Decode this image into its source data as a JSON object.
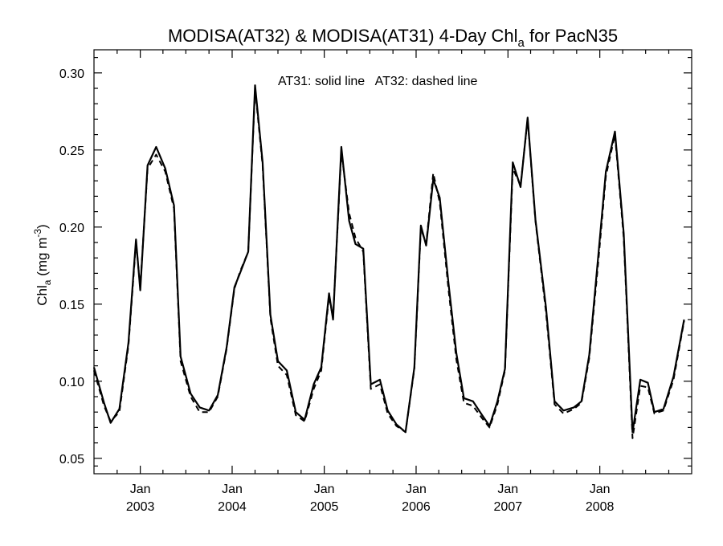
{
  "chart_data": {
    "type": "line",
    "title": {
      "main": "MODISA(AT32) & MODISA(AT31) 4-Day Chl",
      "sub": "a",
      "suffix": " for PacN35"
    },
    "ylabel": {
      "main": "Chl",
      "sub": "a",
      "unit": " (mg m",
      "sup": "-3",
      "close": ")"
    },
    "annotation": "AT31: solid line   AT32: dashed line",
    "xlim": [
      "2002-07-01",
      "2008-12-31"
    ],
    "ylim": [
      0.04,
      0.315
    ],
    "yticks": [
      0.05,
      0.1,
      0.15,
      0.2,
      0.25,
      0.3
    ],
    "ytick_labels": [
      "0.05",
      "0.10",
      "0.15",
      "0.20",
      "0.25",
      "0.30"
    ],
    "xticks_major": [
      {
        "date": "2003-01-01",
        "month": "Jan",
        "year": "2003"
      },
      {
        "date": "2004-01-01",
        "month": "Jan",
        "year": "2004"
      },
      {
        "date": "2005-01-01",
        "month": "Jan",
        "year": "2005"
      },
      {
        "date": "2006-01-01",
        "month": "Jan",
        "year": "2006"
      },
      {
        "date": "2007-01-01",
        "month": "Jan",
        "year": "2007"
      },
      {
        "date": "2008-01-01",
        "month": "Jan",
        "year": "2008"
      }
    ],
    "grid": false,
    "series": [
      {
        "name": "AT31",
        "style": "solid",
        "color": "#000000",
        "points": [
          [
            "2002-07-01",
            0.109
          ],
          [
            "2002-08-10",
            0.086
          ],
          [
            "2002-09-05",
            0.073
          ],
          [
            "2002-10-10",
            0.082
          ],
          [
            "2002-11-15",
            0.125
          ],
          [
            "2002-12-15",
            0.192
          ],
          [
            "2003-01-01",
            0.159
          ],
          [
            "2003-01-30",
            0.24
          ],
          [
            "2003-03-05",
            0.252
          ],
          [
            "2003-04-10",
            0.238
          ],
          [
            "2003-05-15",
            0.214
          ],
          [
            "2003-06-10",
            0.116
          ],
          [
            "2003-07-20",
            0.092
          ],
          [
            "2003-08-25",
            0.083
          ],
          [
            "2003-10-01",
            0.081
          ],
          [
            "2003-11-05",
            0.091
          ],
          [
            "2003-12-10",
            0.122
          ],
          [
            "2004-01-10",
            0.161
          ],
          [
            "2004-02-01",
            0.17
          ],
          [
            "2004-03-05",
            0.184
          ],
          [
            "2004-04-01",
            0.292
          ],
          [
            "2004-05-01",
            0.242
          ],
          [
            "2004-06-01",
            0.143
          ],
          [
            "2004-07-01",
            0.113
          ],
          [
            "2004-08-05",
            0.107
          ],
          [
            "2004-09-10",
            0.08
          ],
          [
            "2004-10-15",
            0.075
          ],
          [
            "2004-11-20",
            0.098
          ],
          [
            "2004-12-20",
            0.109
          ],
          [
            "2005-01-20",
            0.157
          ],
          [
            "2005-02-05",
            0.14
          ],
          [
            "2005-03-10",
            0.252
          ],
          [
            "2005-04-10",
            0.204
          ],
          [
            "2005-05-05",
            0.189
          ],
          [
            "2005-06-05",
            0.186
          ],
          [
            "2005-07-05",
            0.098
          ],
          [
            "2005-08-10",
            0.101
          ],
          [
            "2005-09-10",
            0.081
          ],
          [
            "2005-10-15",
            0.072
          ],
          [
            "2005-11-20",
            0.067
          ],
          [
            "2005-12-25",
            0.109
          ],
          [
            "2006-01-20",
            0.201
          ],
          [
            "2006-02-10",
            0.188
          ],
          [
            "2006-03-10",
            0.231
          ],
          [
            "2006-04-05",
            0.219
          ],
          [
            "2006-05-10",
            0.163
          ],
          [
            "2006-06-10",
            0.118
          ],
          [
            "2006-07-10",
            0.089
          ],
          [
            "2006-08-15",
            0.087
          ],
          [
            "2006-09-20",
            0.078
          ],
          [
            "2006-10-20",
            0.071
          ],
          [
            "2006-11-20",
            0.087
          ],
          [
            "2006-12-20",
            0.108
          ],
          [
            "2007-01-20",
            0.242
          ],
          [
            "2007-02-20",
            0.226
          ],
          [
            "2007-03-20",
            0.271
          ],
          [
            "2007-04-20",
            0.205
          ],
          [
            "2007-06-01",
            0.148
          ],
          [
            "2007-07-05",
            0.087
          ],
          [
            "2007-08-10",
            0.081
          ],
          [
            "2007-09-20",
            0.083
          ],
          [
            "2007-10-20",
            0.087
          ],
          [
            "2007-11-20",
            0.117
          ],
          [
            "2007-12-25",
            0.18
          ],
          [
            "2008-01-25",
            0.236
          ],
          [
            "2008-03-01",
            0.262
          ],
          [
            "2008-04-05",
            0.196
          ],
          [
            "2008-05-10",
            0.067
          ],
          [
            "2008-06-10",
            0.101
          ],
          [
            "2008-07-10",
            0.099
          ],
          [
            "2008-08-05",
            0.08
          ],
          [
            "2008-09-10",
            0.082
          ],
          [
            "2008-10-20",
            0.103
          ],
          [
            "2008-12-01",
            0.14
          ]
        ]
      },
      {
        "name": "AT32",
        "style": "dashed",
        "color": "#000000",
        "points": [
          [
            "2002-07-01",
            0.107
          ],
          [
            "2002-08-10",
            0.084
          ],
          [
            "2002-09-05",
            0.074
          ],
          [
            "2002-10-10",
            0.08
          ],
          [
            "2002-11-15",
            0.123
          ],
          [
            "2002-12-15",
            0.19
          ],
          [
            "2003-01-01",
            0.161
          ],
          [
            "2003-01-30",
            0.238
          ],
          [
            "2003-03-05",
            0.247
          ],
          [
            "2003-04-10",
            0.236
          ],
          [
            "2003-05-15",
            0.212
          ],
          [
            "2003-06-10",
            0.113
          ],
          [
            "2003-07-20",
            0.09
          ],
          [
            "2003-08-25",
            0.08
          ],
          [
            "2003-10-01",
            0.08
          ],
          [
            "2003-11-05",
            0.09
          ],
          [
            "2003-12-10",
            0.121
          ],
          [
            "2004-01-10",
            0.16
          ],
          [
            "2004-02-01",
            0.171
          ],
          [
            "2004-03-05",
            0.184
          ],
          [
            "2004-04-01",
            0.29
          ],
          [
            "2004-05-01",
            0.24
          ],
          [
            "2004-06-01",
            0.141
          ],
          [
            "2004-07-01",
            0.11
          ],
          [
            "2004-08-05",
            0.104
          ],
          [
            "2004-09-10",
            0.078
          ],
          [
            "2004-10-15",
            0.074
          ],
          [
            "2004-11-20",
            0.095
          ],
          [
            "2004-12-20",
            0.107
          ],
          [
            "2005-01-20",
            0.155
          ],
          [
            "2005-02-05",
            0.141
          ],
          [
            "2005-03-10",
            0.249
          ],
          [
            "2005-04-10",
            0.209
          ],
          [
            "2005-05-05",
            0.193
          ],
          [
            "2005-06-05",
            0.184
          ],
          [
            "2005-07-05",
            0.095
          ],
          [
            "2005-08-10",
            0.098
          ],
          [
            "2005-09-10",
            0.079
          ],
          [
            "2005-10-15",
            0.071
          ],
          [
            "2005-11-20",
            0.067
          ],
          [
            "2005-12-25",
            0.108
          ],
          [
            "2006-01-20",
            0.199
          ],
          [
            "2006-02-10",
            0.189
          ],
          [
            "2006-03-10",
            0.235
          ],
          [
            "2006-04-05",
            0.216
          ],
          [
            "2006-05-10",
            0.159
          ],
          [
            "2006-06-10",
            0.114
          ],
          [
            "2006-07-10",
            0.086
          ],
          [
            "2006-08-15",
            0.084
          ],
          [
            "2006-09-20",
            0.076
          ],
          [
            "2006-10-20",
            0.07
          ],
          [
            "2006-11-20",
            0.085
          ],
          [
            "2006-12-20",
            0.107
          ],
          [
            "2007-01-20",
            0.238
          ],
          [
            "2007-02-20",
            0.227
          ],
          [
            "2007-03-20",
            0.27
          ],
          [
            "2007-04-20",
            0.204
          ],
          [
            "2007-06-01",
            0.145
          ],
          [
            "2007-07-05",
            0.085
          ],
          [
            "2007-08-10",
            0.079
          ],
          [
            "2007-09-20",
            0.082
          ],
          [
            "2007-10-20",
            0.086
          ],
          [
            "2007-11-20",
            0.115
          ],
          [
            "2007-12-25",
            0.176
          ],
          [
            "2008-01-25",
            0.233
          ],
          [
            "2008-03-01",
            0.26
          ],
          [
            "2008-04-05",
            0.193
          ],
          [
            "2008-05-10",
            0.063
          ],
          [
            "2008-06-10",
            0.097
          ],
          [
            "2008-07-10",
            0.096
          ],
          [
            "2008-08-05",
            0.079
          ],
          [
            "2008-09-10",
            0.081
          ],
          [
            "2008-10-20",
            0.101
          ],
          [
            "2008-12-01",
            0.139
          ]
        ]
      }
    ]
  }
}
